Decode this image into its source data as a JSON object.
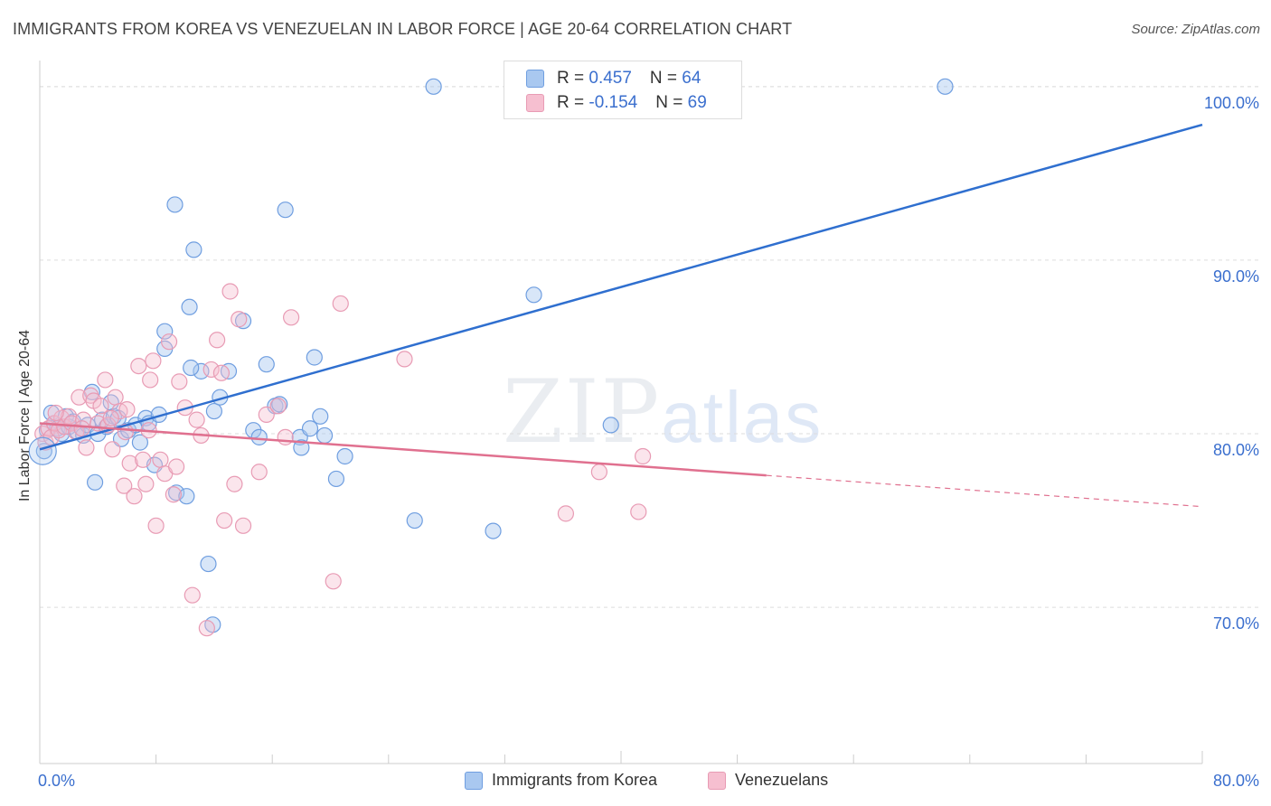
{
  "header": {
    "title": "IMMIGRANTS FROM KOREA VS VENEZUELAN IN LABOR FORCE | AGE 20-64 CORRELATION CHART",
    "source": "Source: ZipAtlas.com"
  },
  "watermark": {
    "zip": "ZIP",
    "atlas": "atlas"
  },
  "legend": {
    "rows": [
      {
        "r_label": "R = ",
        "r_value": "0.457",
        "n_label": "N = ",
        "n_value": "64",
        "color": "#a9c8f0",
        "border": "#6f9ee0"
      },
      {
        "r_label": "R = ",
        "r_value": "-0.154",
        "n_label": "N = ",
        "n_value": "69",
        "color": "#f6bfd0",
        "border": "#e89bb4"
      }
    ]
  },
  "bottom_legend": [
    {
      "label": "Immigrants from Korea",
      "color": "#a9c8f0",
      "border": "#6f9ee0"
    },
    {
      "label": "Venezuelans",
      "color": "#f6bfd0",
      "border": "#e89bb4"
    }
  ],
  "chart_data": {
    "type": "scatter",
    "title": "IMMIGRANTS FROM KOREA VS VENEZUELAN IN LABOR FORCE | AGE 20-64 CORRELATION CHART",
    "xlabel": "",
    "ylabel": "In Labor Force | Age 20-64",
    "xlim": [
      0,
      80
    ],
    "ylim": [
      61,
      101.5
    ],
    "x_tick_labels": [
      "0.0%",
      "80.0%"
    ],
    "y_ticks": [
      70,
      80,
      90,
      100
    ],
    "y_tick_labels": [
      "70.0%",
      "80.0%",
      "90.0%",
      "100.0%"
    ],
    "grid": true,
    "series": [
      {
        "name": "Immigrants from Korea",
        "color": "#6f9ee0",
        "fill": "rgba(169,200,240,0.45)",
        "line_color": "#2f6fcf",
        "trend": {
          "x": [
            0,
            80
          ],
          "y": [
            79.1,
            97.8
          ]
        },
        "points": [
          [
            0.3,
            79.0
          ],
          [
            0.5,
            80.2
          ],
          [
            0.8,
            81.2
          ],
          [
            1.0,
            80.6
          ],
          [
            1.2,
            80.3
          ],
          [
            1.5,
            80.0
          ],
          [
            1.8,
            81.0
          ],
          [
            2.0,
            80.4
          ],
          [
            2.3,
            80.7
          ],
          [
            2.6,
            80.1
          ],
          [
            3.0,
            79.9
          ],
          [
            3.3,
            80.5
          ],
          [
            3.6,
            82.4
          ],
          [
            3.8,
            77.2
          ],
          [
            4.0,
            80.0
          ],
          [
            4.3,
            80.8
          ],
          [
            4.6,
            80.4
          ],
          [
            4.9,
            81.8
          ],
          [
            5.1,
            81.0
          ],
          [
            5.4,
            80.9
          ],
          [
            5.6,
            79.7
          ],
          [
            6.1,
            80.2
          ],
          [
            6.6,
            80.5
          ],
          [
            6.9,
            79.5
          ],
          [
            7.3,
            80.9
          ],
          [
            7.5,
            80.6
          ],
          [
            7.9,
            78.2
          ],
          [
            8.2,
            81.1
          ],
          [
            8.6,
            84.9
          ],
          [
            8.6,
            85.9
          ],
          [
            9.4,
            76.6
          ],
          [
            9.3,
            93.2
          ],
          [
            10.1,
            76.4
          ],
          [
            10.6,
            90.6
          ],
          [
            10.3,
            87.3
          ],
          [
            11.1,
            83.6
          ],
          [
            10.4,
            83.8
          ],
          [
            11.6,
            72.5
          ],
          [
            12.0,
            81.3
          ],
          [
            11.9,
            69.0
          ],
          [
            12.4,
            82.1
          ],
          [
            13.0,
            83.6
          ],
          [
            14.0,
            86.5
          ],
          [
            14.7,
            80.2
          ],
          [
            15.1,
            79.8
          ],
          [
            15.6,
            84.0
          ],
          [
            16.2,
            81.6
          ],
          [
            16.5,
            81.7
          ],
          [
            16.9,
            92.9
          ],
          [
            17.9,
            79.8
          ],
          [
            18.0,
            79.2
          ],
          [
            18.6,
            80.3
          ],
          [
            18.9,
            84.4
          ],
          [
            19.3,
            81.0
          ],
          [
            19.6,
            79.9
          ],
          [
            20.4,
            77.4
          ],
          [
            21.0,
            78.7
          ],
          [
            25.8,
            75.0
          ],
          [
            27.1,
            100.0
          ],
          [
            31.2,
            74.4
          ],
          [
            34.0,
            88.0
          ],
          [
            39.3,
            80.5
          ],
          [
            39.5,
            100.0
          ],
          [
            62.3,
            100.0
          ]
        ]
      },
      {
        "name": "Venezuelans",
        "color": "#e89bb4",
        "fill": "rgba(246,191,208,0.40)",
        "line_color": "#e0708f",
        "trend": {
          "x": [
            0,
            80
          ],
          "y": [
            80.6,
            75.8
          ]
        },
        "trend_solid_until": 50,
        "points": [
          [
            0.2,
            80.0
          ],
          [
            0.4,
            79.5
          ],
          [
            0.6,
            80.3
          ],
          [
            0.8,
            79.8
          ],
          [
            1.0,
            80.6
          ],
          [
            1.3,
            80.2
          ],
          [
            1.5,
            80.9
          ],
          [
            1.7,
            80.4
          ],
          [
            2.0,
            81.0
          ],
          [
            2.2,
            80.6
          ],
          [
            2.5,
            80.1
          ],
          [
            2.7,
            82.1
          ],
          [
            3.0,
            80.8
          ],
          [
            3.2,
            79.2
          ],
          [
            3.5,
            82.2
          ],
          [
            3.7,
            81.9
          ],
          [
            4.0,
            80.6
          ],
          [
            4.2,
            81.6
          ],
          [
            4.5,
            83.1
          ],
          [
            4.7,
            80.5
          ],
          [
            5.0,
            79.1
          ],
          [
            5.2,
            82.1
          ],
          [
            5.5,
            81.3
          ],
          [
            5.8,
            77.0
          ],
          [
            5.9,
            80.1
          ],
          [
            6.2,
            78.3
          ],
          [
            6.5,
            76.4
          ],
          [
            6.8,
            83.9
          ],
          [
            7.1,
            78.5
          ],
          [
            7.3,
            77.1
          ],
          [
            7.6,
            83.1
          ],
          [
            7.8,
            84.2
          ],
          [
            8.0,
            74.7
          ],
          [
            8.3,
            78.5
          ],
          [
            8.6,
            77.7
          ],
          [
            8.9,
            85.3
          ],
          [
            9.2,
            76.5
          ],
          [
            9.6,
            83.0
          ],
          [
            10.0,
            81.5
          ],
          [
            10.5,
            70.7
          ],
          [
            10.8,
            80.8
          ],
          [
            11.1,
            79.9
          ],
          [
            11.5,
            68.8
          ],
          [
            11.8,
            83.7
          ],
          [
            12.2,
            85.4
          ],
          [
            12.7,
            75.0
          ],
          [
            13.1,
            88.2
          ],
          [
            13.4,
            77.1
          ],
          [
            13.7,
            86.6
          ],
          [
            14.0,
            74.7
          ],
          [
            15.1,
            77.8
          ],
          [
            15.6,
            81.1
          ],
          [
            16.4,
            81.6
          ],
          [
            16.9,
            79.8
          ],
          [
            17.3,
            86.7
          ],
          [
            20.2,
            71.5
          ],
          [
            20.7,
            87.5
          ],
          [
            25.1,
            84.3
          ],
          [
            36.2,
            75.4
          ],
          [
            38.5,
            77.8
          ],
          [
            41.2,
            75.5
          ],
          [
            41.5,
            78.7
          ],
          [
            1.1,
            81.2
          ],
          [
            2.9,
            80.3
          ],
          [
            4.9,
            80.9
          ],
          [
            6.0,
            81.4
          ],
          [
            9.4,
            78.1
          ],
          [
            12.5,
            83.5
          ],
          [
            7.5,
            80.2
          ]
        ]
      }
    ]
  }
}
